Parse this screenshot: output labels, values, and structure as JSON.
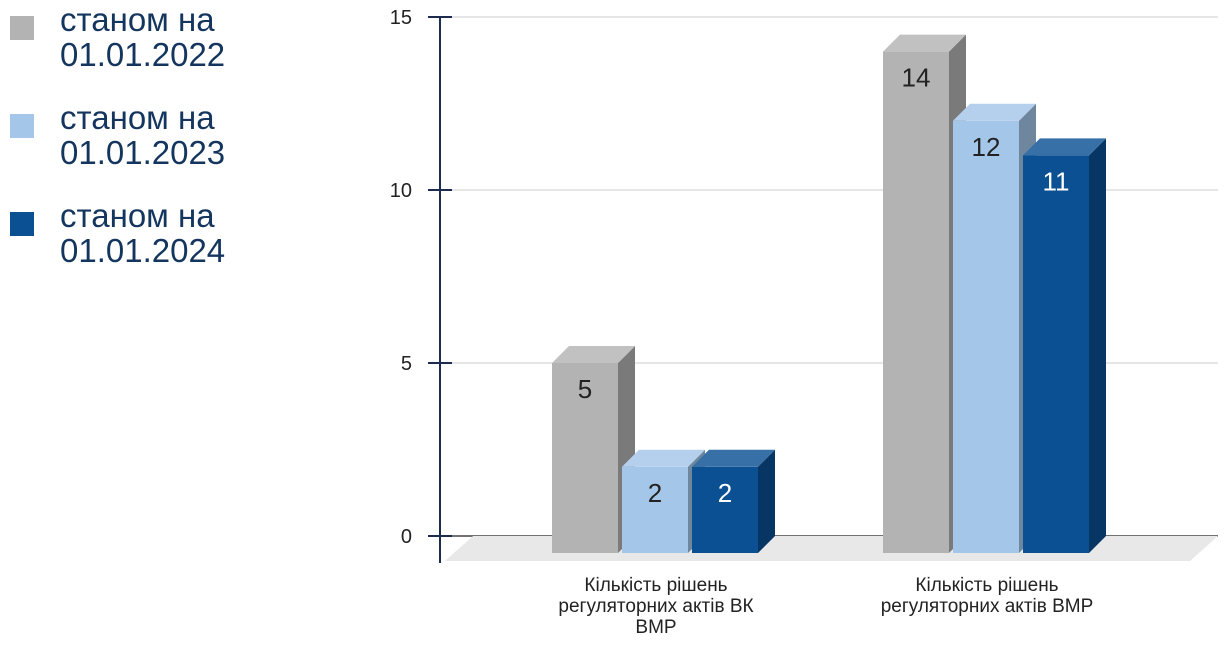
{
  "legend": {
    "items": [
      {
        "label": "станом на 01.01.2022",
        "color": "#b3b3b3"
      },
      {
        "label": "станом на 01.01.2023",
        "color": "#a3c6e9"
      },
      {
        "label": "станом на 01.01.2024",
        "color": "#0b5093"
      }
    ]
  },
  "chart_data": {
    "type": "bar",
    "bar_style": "3d",
    "categories": [
      "Кількість рішень регуляторних актів ВК ВМР",
      "Кількість рішень регуляторних актів ВМР"
    ],
    "series": [
      {
        "name": "станом на 01.01.2022",
        "values": [
          5,
          14
        ],
        "color": "#b3b3b3"
      },
      {
        "name": "станом на 01.01.2023",
        "values": [
          2,
          12
        ],
        "color": "#a3c6e9"
      },
      {
        "name": "станом на 01.01.2024",
        "values": [
          2,
          11
        ],
        "color": "#0b5093"
      }
    ],
    "ylim": [
      0,
      15
    ],
    "yticks": [
      0,
      5,
      10,
      15
    ],
    "grid": true,
    "legend_position": "left",
    "data_labels": true
  }
}
